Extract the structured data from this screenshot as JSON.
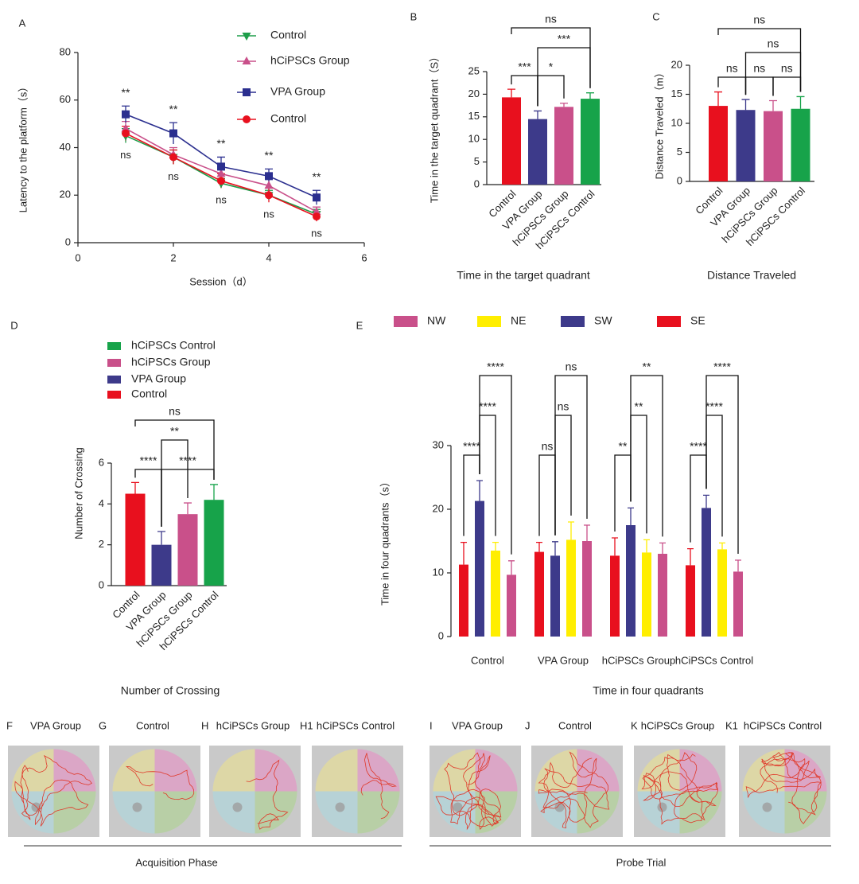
{
  "chart_data": [
    {
      "type": "line",
      "panel": "A",
      "xlabel": "Session（d）",
      "ylabel": "Latency to the platform（s）",
      "x": [
        1,
        2,
        3,
        4,
        5
      ],
      "xlim": [
        0,
        6
      ],
      "xticks": [
        0,
        2,
        4,
        6
      ],
      "ylim": [
        0,
        80
      ],
      "yticks": [
        0,
        20,
        40,
        60,
        80
      ],
      "series": [
        {
          "name": "Control",
          "color": "#1e9e4a",
          "marker": "triangle-down",
          "values": [
            45,
            36,
            25,
            20,
            12
          ],
          "errors": [
            3,
            3,
            2,
            2,
            2
          ]
        },
        {
          "name": "hCiPSCs Group",
          "color": "#c9508a",
          "marker": "triangle-up",
          "values": [
            48,
            37,
            29,
            24,
            13
          ],
          "errors": [
            3,
            3,
            2.5,
            3,
            2
          ]
        },
        {
          "name": "VPA Group",
          "color": "#2b2f8f",
          "marker": "square",
          "values": [
            54,
            46,
            32,
            28,
            19
          ],
          "errors": [
            3.5,
            4.5,
            4,
            3,
            3
          ]
        },
        {
          "name": "Control",
          "color": "#e8101e",
          "marker": "circle",
          "values": [
            46,
            36,
            26,
            20,
            11
          ],
          "errors": [
            3,
            3,
            3,
            3,
            2
          ]
        }
      ],
      "annotations_above": [
        "**",
        "**",
        "**",
        "**",
        "**"
      ],
      "annotations_below": [
        "ns",
        "ns",
        "ns",
        "ns",
        "ns"
      ]
    },
    {
      "type": "bar",
      "panel": "B",
      "ylabel": "Time in the target quadrant（S）",
      "caption": "Time in the target quadrant",
      "categories": [
        "Control",
        "VPA Group",
        "hCiPSCs Group",
        "hCiPSCs Control"
      ],
      "values": [
        19.3,
        14.5,
        17.2,
        19
      ],
      "errors": [
        1.8,
        1.8,
        0.8,
        1.3
      ],
      "colors": [
        "#e8101e",
        "#3d3a8a",
        "#c9508a",
        "#17a34a"
      ],
      "ylim": [
        0,
        25
      ],
      "yticks": [
        0,
        5,
        10,
        15,
        20,
        25
      ],
      "annotations": [
        "ns",
        "***",
        "***",
        "*"
      ]
    },
    {
      "type": "bar",
      "panel": "C",
      "ylabel": "Distance Traveled（m）",
      "caption": "Distance Traveled",
      "categories": [
        "Control",
        "VPA Group",
        "hCiPSCs Group",
        "hCiPSCs Control"
      ],
      "values": [
        13,
        12.3,
        12.1,
        12.5
      ],
      "errors": [
        2.4,
        1.8,
        1.8,
        2.1
      ],
      "colors": [
        "#e8101e",
        "#3d3a8a",
        "#c9508a",
        "#17a34a"
      ],
      "ylim": [
        0,
        20
      ],
      "yticks": [
        0,
        5,
        10,
        15,
        20
      ],
      "annotations": [
        "ns",
        "ns",
        "ns",
        "ns",
        "ns"
      ]
    },
    {
      "type": "bar",
      "panel": "D",
      "ylabel": "Number of Crossing",
      "caption": "Number of Crossing",
      "categories": [
        "Control",
        "VPA Group",
        "hCiPSCs Group",
        "hCiPSCs Control"
      ],
      "values": [
        4.5,
        2.0,
        3.5,
        4.2
      ],
      "errors": [
        0.55,
        0.65,
        0.55,
        0.75
      ],
      "colors": [
        "#e8101e",
        "#3d3a8a",
        "#c9508a",
        "#17a34a"
      ],
      "ylim": [
        0,
        6
      ],
      "yticks": [
        0,
        2,
        4,
        6
      ],
      "annotations": [
        "ns",
        "**",
        "****",
        "****"
      ]
    },
    {
      "type": "grouped_bar",
      "panel": "E",
      "ylabel": "Time in four quadrants（s）",
      "caption": "Time in four quadrants",
      "categories": [
        "Control",
        "VPA Group",
        "hCiPSCs Group",
        "hCiPSCs Control"
      ],
      "series": [
        {
          "name": "NW",
          "color": "#c9508a",
          "values": [
            9.7,
            15,
            13,
            10.2
          ],
          "errors": [
            2.2,
            2.5,
            1.7,
            1.8
          ]
        },
        {
          "name": "NE",
          "color": "#ffee00",
          "values": [
            13.5,
            15.2,
            13.2,
            13.7
          ],
          "errors": [
            1.3,
            2.8,
            2,
            1
          ]
        },
        {
          "name": "SW",
          "color": "#3d3a8a",
          "values": [
            21.3,
            12.7,
            17.5,
            20.2
          ],
          "errors": [
            3.2,
            2.2,
            2.7,
            2
          ]
        },
        {
          "name": "SE",
          "color": "#e8101e",
          "values": [
            11.3,
            13.3,
            12.7,
            11.2
          ],
          "errors": [
            3.5,
            1.5,
            2.8,
            2.6
          ]
        }
      ],
      "ylim": [
        0,
        30
      ],
      "yticks": [
        0,
        10,
        20,
        30
      ],
      "annotations": [
        [
          "****",
          "****",
          "****"
        ],
        [
          "ns",
          "ns",
          "ns"
        ],
        [
          "**",
          "**",
          "**"
        ],
        [
          "****",
          "****",
          "****"
        ]
      ]
    }
  ],
  "track_panels": [
    {
      "letter": "F",
      "title": "VPA Group"
    },
    {
      "letter": "G",
      "title": "Control"
    },
    {
      "letter": "H",
      "title": "hCiPSCs Group"
    },
    {
      "letter": "H1",
      "title": "hCiPSCs Control"
    },
    {
      "letter": "I",
      "title": "VPA Group"
    },
    {
      "letter": "J",
      "title": "Control"
    },
    {
      "letter": "K",
      "title": "hCiPSCs Group"
    },
    {
      "letter": "K1",
      "title": "hCiPSCs Control"
    }
  ],
  "phases": [
    "Acquisition Phase",
    "Probe Trial"
  ]
}
